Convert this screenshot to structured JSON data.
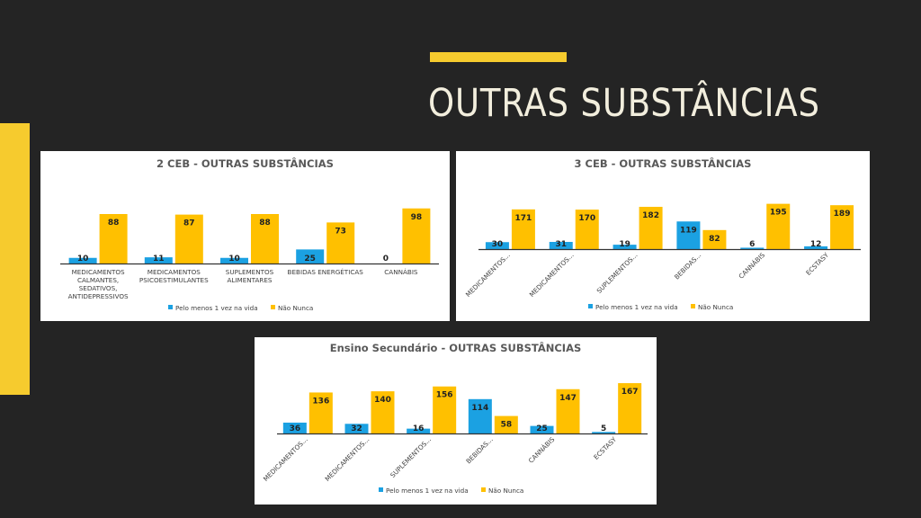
{
  "slide": {
    "title": "OUTRAS SUBSTÂNCIAS",
    "accent_color": "#F6CB2E",
    "background_color": "#242424"
  },
  "chart_data": [
    {
      "type": "bar",
      "title": "2 CEB - OUTRAS SUBSTÂNCIAS",
      "categories": [
        [
          "MEDICAMENTOS",
          "CALMANTES,",
          "SEDATIVOS,",
          "ANTIDEPRESSIVOS"
        ],
        [
          "MEDICAMENTOS",
          "PSICOESTIMULANTES"
        ],
        [
          "SUPLEMENTOS",
          "ALIMENTARES"
        ],
        [
          "BEBIDAS ENERGÉTICAS"
        ],
        [
          "CANNÁBIS"
        ]
      ],
      "category_label_style": "horizontal",
      "series": [
        {
          "name": "Pelo menos 1 vez na vida",
          "color": "#1BA1E2",
          "values": [
            10,
            11,
            10,
            25,
            0
          ]
        },
        {
          "name": "Não Nunca",
          "color": "#FFC000",
          "values": [
            88,
            87,
            88,
            73,
            98
          ]
        }
      ],
      "ylim": [
        0,
        120
      ],
      "legend": "bottom",
      "grid": false
    },
    {
      "type": "bar",
      "title": "3 CEB - OUTRAS SUBSTÂNCIAS",
      "categories": [
        [
          "MEDICAMENTOS..."
        ],
        [
          "MEDICAMENTOS..."
        ],
        [
          "SUPLEMENTOS..."
        ],
        [
          "BEBIDAS..."
        ],
        [
          "CANNÁBIS"
        ],
        [
          "ECSTASY"
        ]
      ],
      "category_label_style": "rotated",
      "series": [
        {
          "name": "Pelo menos 1 vez na vida",
          "color": "#1BA1E2",
          "values": [
            30,
            31,
            19,
            119,
            6,
            12
          ]
        },
        {
          "name": "Não Nunca",
          "color": "#FFC000",
          "values": [
            171,
            170,
            182,
            82,
            195,
            189
          ]
        }
      ],
      "ylim": [
        0,
        240
      ],
      "legend": "bottom",
      "grid": false
    },
    {
      "type": "bar",
      "title": "Ensino Secundário  - OUTRAS SUBSTÂNCIAS",
      "categories": [
        [
          "MEDICAMENTOS..."
        ],
        [
          "MEDICAMENTOS..."
        ],
        [
          "SUPLEMENTOS..."
        ],
        [
          "BEBIDAS..."
        ],
        [
          "CANNÁBIS"
        ],
        [
          "ECSTASY"
        ]
      ],
      "category_label_style": "rotated",
      "series": [
        {
          "name": "Pelo menos 1 vez na vida",
          "color": "#1BA1E2",
          "values": [
            36,
            32,
            16,
            114,
            25,
            5
          ]
        },
        {
          "name": "Não Nunca",
          "color": "#FFC000",
          "values": [
            136,
            140,
            156,
            58,
            147,
            167
          ]
        }
      ],
      "ylim": [
        0,
        200
      ],
      "legend": "bottom",
      "grid": false
    }
  ]
}
